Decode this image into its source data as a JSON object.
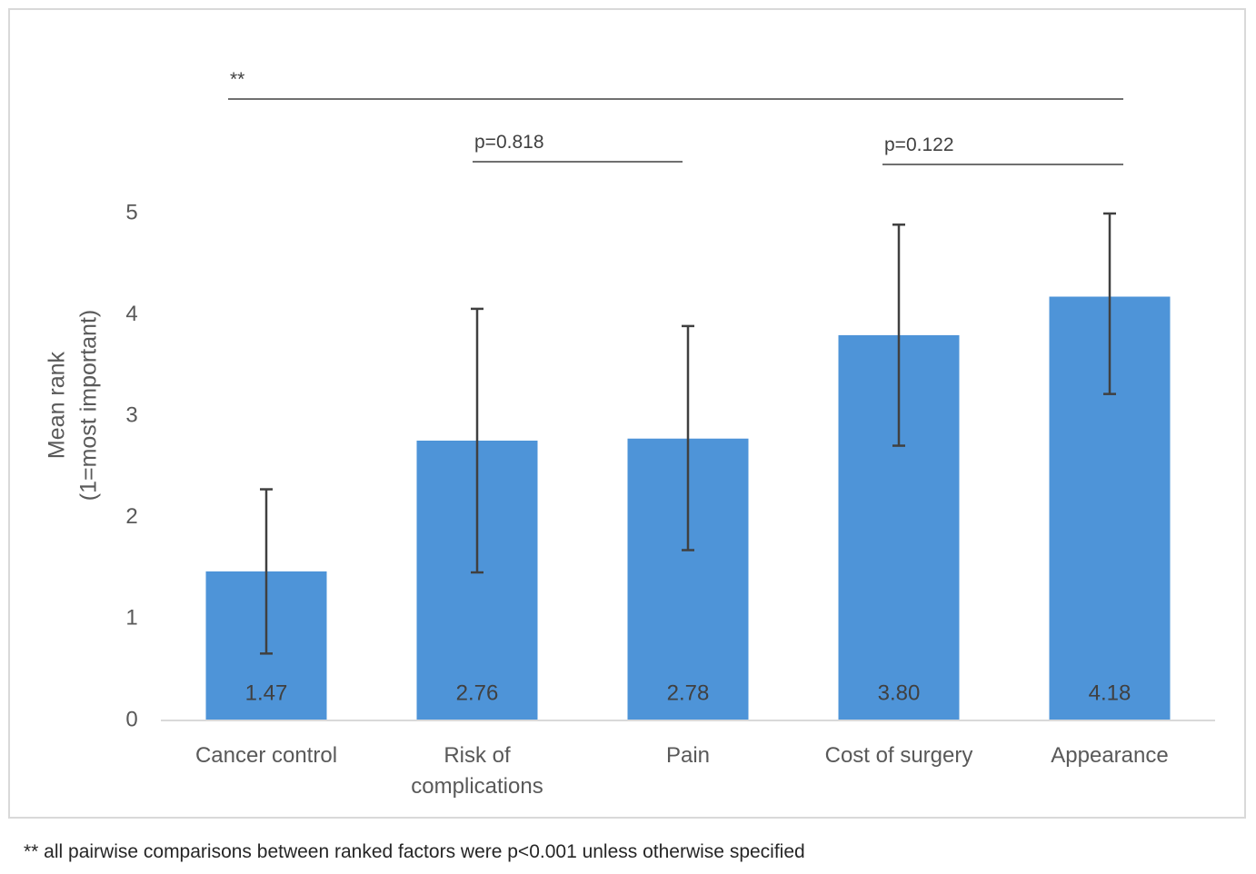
{
  "chart_data": {
    "type": "bar",
    "categories": [
      [
        "Cancer control"
      ],
      [
        "Risk of",
        "complications"
      ],
      [
        "Pain"
      ],
      [
        "Cost of surgery"
      ],
      [
        "Appearance"
      ]
    ],
    "values": [
      1.47,
      2.76,
      2.78,
      3.8,
      4.18
    ],
    "value_labels": [
      "1.47",
      "2.76",
      "2.78",
      "3.80",
      "4.18"
    ],
    "error_bars": [
      {
        "low": 0.66,
        "high": 2.28
      },
      {
        "low": 1.46,
        "high": 4.06
      },
      {
        "low": 1.68,
        "high": 3.89
      },
      {
        "low": 2.71,
        "high": 4.89
      },
      {
        "low": 3.22,
        "high": 5.0
      }
    ],
    "ylabel": [
      "Mean rank",
      "(1=most important)"
    ],
    "ylim": [
      0,
      5
    ],
    "yticks": [
      "0",
      "1",
      "2",
      "3",
      "4",
      "5"
    ],
    "grid": false,
    "bar_color": "#4e94d8",
    "annotations": [
      {
        "label": "**",
        "from_category": 0,
        "to_category": 4
      },
      {
        "label": "p=0.818",
        "from_category": 1,
        "to_category": 2
      },
      {
        "label": "p=0.122",
        "from_category": 3,
        "to_category": 4
      }
    ]
  },
  "footnote": "** all pairwise comparisons between ranked factors were p<0.001 unless otherwise specified"
}
